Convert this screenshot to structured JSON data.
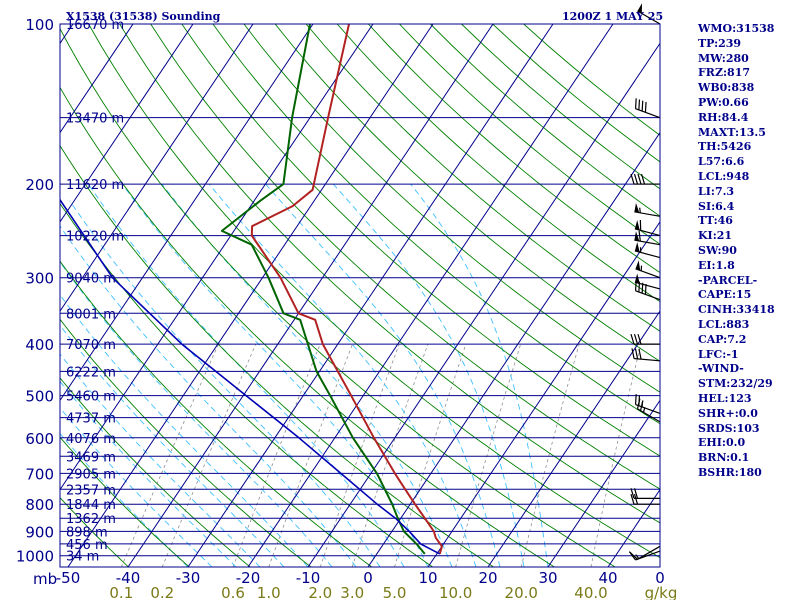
{
  "header": {
    "station": "X1538 (31538) Sounding",
    "valid": "1200Z  1 MAY 25"
  },
  "colors": {
    "frame": "#00008b",
    "isobar": "#00008b",
    "isotherm": "#00008b",
    "dry_adiabat": "#008000",
    "moist_adiabat": "#40c0ff",
    "mixing_ratio": "#909090",
    "temperature": "#b22222",
    "dewpoint": "#006400",
    "parcel": "#0000b4",
    "wind_barb": "#000000",
    "axis_text": "#00008b",
    "mixing_text": "#7a7a18"
  },
  "indices": [
    "WMO:31538",
    "TP:239",
    "MW:280",
    "FRZ:817",
    "WB0:838",
    "PW:0.66",
    "RH:84.4",
    "MAXT:13.5",
    "TH:5426",
    "L57:6.6",
    "LCL:948",
    "LI:7.3",
    "SI:6.4",
    "TT:46",
    "KI:21",
    "SW:90",
    "EI:1.8",
    "-PARCEL-",
    "CAPE:15",
    "CINH:33418",
    "LCL:883",
    "CAP:7.2",
    "LFC:-1",
    "-WIND-",
    "STM:232/29",
    "HEL:123",
    "SHR+:0.0",
    "SRDS:103",
    "EHI:0.0",
    "BRN:0.1",
    "BSHR:180"
  ],
  "chart_data": {
    "type": "line",
    "title": "X1538 (31538) Sounding",
    "subtitle": "1200Z  1 MAY 25",
    "diagram": "skew-T log-p",
    "pressure_axis_label": "mb",
    "pressure_ticks": [
      {
        "p": 100,
        "label": "100"
      },
      {
        "p": 200,
        "label": "200"
      },
      {
        "p": 300,
        "label": "300"
      },
      {
        "p": 400,
        "label": "400"
      },
      {
        "p": 500,
        "label": "500"
      },
      {
        "p": 600,
        "label": "600"
      },
      {
        "p": 700,
        "label": "700"
      },
      {
        "p": 800,
        "label": "800"
      },
      {
        "p": 900,
        "label": "900"
      },
      {
        "p": 1000,
        "label": "1000"
      }
    ],
    "temperature_ticks": [
      {
        "t": -50,
        "label": "-50"
      },
      {
        "t": -40,
        "label": "-40"
      },
      {
        "t": -30,
        "label": "-30"
      },
      {
        "t": -20,
        "label": "-20"
      },
      {
        "t": -10,
        "label": "-10"
      },
      {
        "t": 0,
        "label": "0"
      },
      {
        "t": 10,
        "label": "10"
      },
      {
        "t": 20,
        "label": "20"
      },
      {
        "t": 30,
        "label": "30"
      },
      {
        "t": 40,
        "label": "40"
      }
    ],
    "mixing_ratio_unit": "g/kg",
    "mixing_ratio_lines": [
      {
        "w": 0.1,
        "label": "0.1"
      },
      {
        "w": 0.2,
        "label": "0.2"
      },
      {
        "w": 0.6,
        "label": "0.6"
      },
      {
        "w": 1.0,
        "label": "1.0"
      },
      {
        "w": 2.0,
        "label": "2.0"
      },
      {
        "w": 3.0,
        "label": "3.0"
      },
      {
        "w": 5.0,
        "label": "5.0"
      },
      {
        "w": 10.0,
        "label": "10.0"
      },
      {
        "w": 20.0,
        "label": "20.0"
      },
      {
        "w": 40.0,
        "label": "40.0"
      }
    ],
    "heights": [
      {
        "p": 100,
        "label": "16670 m"
      },
      {
        "p": 150,
        "label": "13470 m"
      },
      {
        "p": 200,
        "label": "11620 m"
      },
      {
        "p": 250,
        "label": "10220 m"
      },
      {
        "p": 300,
        "label": "9040 m"
      },
      {
        "p": 350,
        "label": "8001 m"
      },
      {
        "p": 400,
        "label": "7070 m"
      },
      {
        "p": 450,
        "label": "6222 m"
      },
      {
        "p": 500,
        "label": "5460 m"
      },
      {
        "p": 550,
        "label": "4737 m"
      },
      {
        "p": 600,
        "label": "4076 m"
      },
      {
        "p": 650,
        "label": "3469 m"
      },
      {
        "p": 700,
        "label": "2905 m"
      },
      {
        "p": 750,
        "label": "2357 m"
      },
      {
        "p": 800,
        "label": "1844 m"
      },
      {
        "p": 850,
        "label": "1362 m"
      },
      {
        "p": 900,
        "label": "898 m"
      },
      {
        "p": 950,
        "label": "456 m"
      },
      {
        "p": 1000,
        "label": "34 m"
      }
    ],
    "series": [
      {
        "key": "temperature",
        "points": [
          {
            "p": 992,
            "t": 10.5
          },
          {
            "p": 960,
            "t": 10.0
          },
          {
            "p": 925,
            "t": 8.0
          },
          {
            "p": 900,
            "t": 7.0
          },
          {
            "p": 850,
            "t": 4.0
          },
          {
            "p": 800,
            "t": 0.8
          },
          {
            "p": 750,
            "t": -2.5
          },
          {
            "p": 700,
            "t": -6.0
          },
          {
            "p": 600,
            "t": -13.5
          },
          {
            "p": 500,
            "t": -22.0
          },
          {
            "p": 400,
            "t": -32.5
          },
          {
            "p": 360,
            "t": -36.5
          },
          {
            "p": 350,
            "t": -40.0
          },
          {
            "p": 300,
            "t": -47.0
          },
          {
            "p": 250,
            "t": -56.5
          },
          {
            "p": 240,
            "t": -57.5
          },
          {
            "p": 220,
            "t": -53.0
          },
          {
            "p": 205,
            "t": -51.5
          },
          {
            "p": 150,
            "t": -57.0
          },
          {
            "p": 100,
            "t": -64.0
          }
        ]
      },
      {
        "key": "dewpoint",
        "points": [
          {
            "p": 992,
            "t": 8.0
          },
          {
            "p": 950,
            "t": 5.5
          },
          {
            "p": 900,
            "t": 2.0
          },
          {
            "p": 850,
            "t": -0.5
          },
          {
            "p": 800,
            "t": -3.0
          },
          {
            "p": 700,
            "t": -9.0
          },
          {
            "p": 600,
            "t": -17.0
          },
          {
            "p": 500,
            "t": -25.5
          },
          {
            "p": 450,
            "t": -30.5
          },
          {
            "p": 360,
            "t": -39.0
          },
          {
            "p": 350,
            "t": -42.5
          },
          {
            "p": 300,
            "t": -49.0
          },
          {
            "p": 260,
            "t": -55.5
          },
          {
            "p": 245,
            "t": -62.0
          },
          {
            "p": 215,
            "t": -59.0
          },
          {
            "p": 200,
            "t": -57.0
          },
          {
            "p": 150,
            "t": -63.0
          },
          {
            "p": 100,
            "t": -70.5
          }
        ]
      },
      {
        "key": "parcel",
        "points": [
          {
            "p": 992,
            "t": 10.5
          },
          {
            "p": 950,
            "t": 6.2
          },
          {
            "p": 900,
            "t": 2.9
          },
          {
            "p": 850,
            "t": -0.9
          },
          {
            "p": 800,
            "t": -5.5
          },
          {
            "p": 700,
            "t": -15.0
          },
          {
            "p": 600,
            "t": -26.0
          },
          {
            "p": 500,
            "t": -39.5
          },
          {
            "p": 400,
            "t": -56.0
          },
          {
            "p": 300,
            "t": -75.0
          },
          {
            "p": 200,
            "t": -96.0
          },
          {
            "p": 150,
            "t": -108.0
          },
          {
            "p": 110,
            "t": -117.0
          }
        ]
      }
    ],
    "wind_barbs": [
      {
        "p": 100,
        "dir": 300,
        "speed": 50
      },
      {
        "p": 150,
        "dir": 290,
        "speed": 40
      },
      {
        "p": 200,
        "dir": 270,
        "speed": 40
      },
      {
        "p": 230,
        "dir": 280,
        "speed": 55
      },
      {
        "p": 250,
        "dir": 285,
        "speed": 60
      },
      {
        "p": 260,
        "dir": 280,
        "speed": 60
      },
      {
        "p": 275,
        "dir": 285,
        "speed": 55
      },
      {
        "p": 300,
        "dir": 290,
        "speed": 55
      },
      {
        "p": 315,
        "dir": 285,
        "speed": 50
      },
      {
        "p": 330,
        "dir": 290,
        "speed": 40
      },
      {
        "p": 400,
        "dir": 270,
        "speed": 30
      },
      {
        "p": 430,
        "dir": 275,
        "speed": 30
      },
      {
        "p": 540,
        "dir": 290,
        "speed": 25
      },
      {
        "p": 560,
        "dir": 300,
        "speed": 25
      },
      {
        "p": 780,
        "dir": 270,
        "speed": 20
      },
      {
        "p": 800,
        "dir": 270,
        "speed": 20
      },
      {
        "p": 960,
        "dir": 240,
        "speed": 10
      },
      {
        "p": 980,
        "dir": 250,
        "speed": 15
      }
    ]
  }
}
